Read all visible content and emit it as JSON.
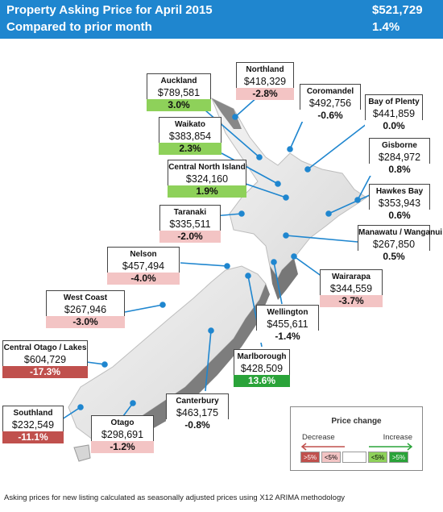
{
  "header": {
    "title": "Property Asking Price for  April 2015",
    "national_price": "$521,729",
    "subtitle": "Compared to prior month",
    "national_change": "1.4%"
  },
  "regions": [
    {
      "name": "Auckland",
      "price": "$789,581",
      "change": "3.0%",
      "change_class": "pos-small"
    },
    {
      "name": "Northland",
      "price": "$418,329",
      "change": "-2.8%",
      "change_class": "neg-small"
    },
    {
      "name": "Coromandel",
      "price": "$492,756",
      "change": "-0.6%",
      "change_class": "flat"
    },
    {
      "name": "Bay of Plenty",
      "price": "$441,859",
      "change": "0.0%",
      "change_class": "flat"
    },
    {
      "name": "Waikato",
      "price": "$383,854",
      "change": "2.3%",
      "change_class": "pos-small"
    },
    {
      "name": "Gisborne",
      "price": "$284,972",
      "change": "0.8%",
      "change_class": "flat"
    },
    {
      "name": "Central North Island",
      "price": "$324,160",
      "change": "1.9%",
      "change_class": "pos-small"
    },
    {
      "name": "Hawkes Bay",
      "price": "$353,943",
      "change": "0.6%",
      "change_class": "flat"
    },
    {
      "name": "Taranaki",
      "price": "$335,511",
      "change": "-2.0%",
      "change_class": "neg-small"
    },
    {
      "name": "Manawatu / Wanganui",
      "price": "$267,850",
      "change": "0.5%",
      "change_class": "flat"
    },
    {
      "name": "Nelson",
      "price": "$457,494",
      "change": "-4.0%",
      "change_class": "neg-small"
    },
    {
      "name": "Wairarapa",
      "price": "$344,559",
      "change": "-3.7%",
      "change_class": "neg-small"
    },
    {
      "name": "West Coast",
      "price": "$267,946",
      "change": "-3.0%",
      "change_class": "neg-small"
    },
    {
      "name": "Wellington",
      "price": "$455,611",
      "change": "-1.4%",
      "change_class": "flat"
    },
    {
      "name": "Central Otago / Lakes",
      "price": "$604,729",
      "change": "-17.3%",
      "change_class": "neg-large"
    },
    {
      "name": "Marlborough",
      "price": "$428,509",
      "change": "13.6%",
      "change_class": "pos-large"
    },
    {
      "name": "Canterbury",
      "price": "$463,175",
      "change": "-0.8%",
      "change_class": "flat"
    },
    {
      "name": "Southland",
      "price": "$232,549",
      "change": "-11.1%",
      "change_class": "neg-large"
    },
    {
      "name": "Otago",
      "price": "$298,691",
      "change": "-1.2%",
      "change_class": "neg-small"
    }
  ],
  "legend": {
    "title": "Price change",
    "decrease": "Decrease",
    "increase": "Increase",
    "swatches": [
      ">5%",
      "<5%",
      "",
      "<5%",
      ">5%"
    ],
    "colors": {
      "neg_large": "#c0504d",
      "neg_small": "#f3c4c4",
      "neutral": "#ffffff",
      "pos_small": "#8ed15a",
      "pos_large": "#2aa339"
    }
  },
  "footer": "Asking prices for new listing calculated as seasonally adjusted prices using X12 ARIMA methodology",
  "colors": {
    "header_bg": "#1f86cf",
    "leader_line": "#1f86cf",
    "map_fill": "#e9e9e9"
  }
}
